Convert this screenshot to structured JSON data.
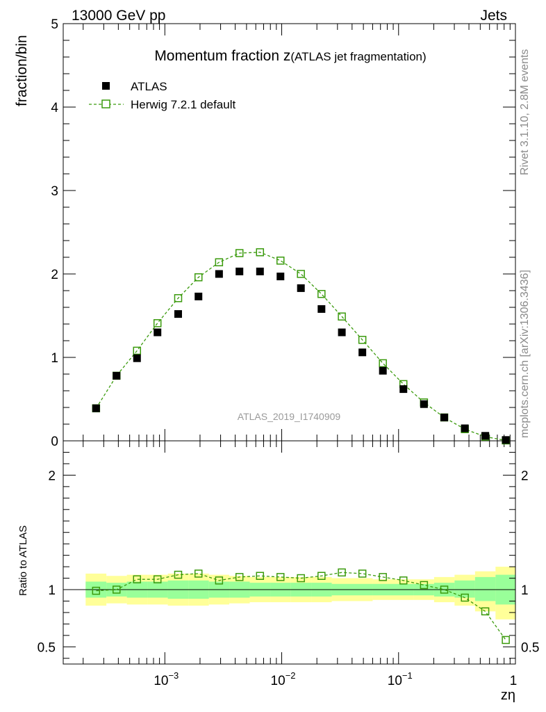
{
  "header": {
    "left": "13000 GeV pp",
    "right": "Jets"
  },
  "side_text": {
    "rivet": "Rivet 3.1.10,  2.8M events",
    "mcplots": "mcplots.cern.ch [arXiv:1306.3436]"
  },
  "chart_data": {
    "type": "scatter",
    "title_main": "Momentum fraction ",
    "title_var": "z",
    "title_sub": "(ATLAS jet fragmentation)",
    "ylabel": "fraction/bin",
    "ratio_ylabel": "Ratio to ATLAS",
    "xlabel": "zη",
    "analysis_id": "ATLAS_2019_I1740909",
    "xscale": "log",
    "xlim": [
      0.000135,
      1.0
    ],
    "ylim": [
      0,
      5
    ],
    "ratio_ylim": [
      0.35,
      2.3
    ],
    "yticks": [
      "0",
      "1",
      "2",
      "3",
      "4",
      "5"
    ],
    "ratio_yticks": [
      "0.5",
      "1",
      "2"
    ],
    "xtick_base": "10",
    "xtick_exps": [
      "−3",
      "−2",
      "−1"
    ],
    "xtick_one": "1",
    "legend": {
      "data": "ATLAS",
      "mc": "Herwig 7.2.1 default"
    },
    "colors": {
      "data": "#000000",
      "mc": "#3a9a0c",
      "band_inner": "#99ff99",
      "band_outer": "#ffff99"
    },
    "bin_edges": [
      0.00021,
      0.000316,
      0.000473,
      0.000708,
      0.00106,
      0.00159,
      0.00238,
      0.00356,
      0.00533,
      0.00798,
      0.0119,
      0.0179,
      0.0268,
      0.0401,
      0.06,
      0.0899,
      0.1345,
      0.2013,
      0.3014,
      0.4512,
      0.6755,
      1.0
    ],
    "x": [
      0.000258,
      0.000386,
      0.000578,
      0.000865,
      0.0013,
      0.00194,
      0.00291,
      0.00435,
      0.00652,
      0.00976,
      0.0146,
      0.0219,
      0.0327,
      0.049,
      0.0734,
      0.11,
      0.165,
      0.246,
      0.369,
      0.552,
      0.827
    ],
    "series": [
      {
        "name": "ATLAS",
        "values": [
          0.39,
          0.78,
          0.99,
          1.3,
          1.52,
          1.73,
          2.0,
          2.03,
          2.03,
          1.97,
          1.83,
          1.58,
          1.3,
          1.06,
          0.84,
          0.62,
          0.44,
          0.28,
          0.15,
          0.06,
          0.01
        ]
      },
      {
        "name": "Herwig 7.2.1 default",
        "values": [
          0.39,
          0.78,
          1.08,
          1.41,
          1.71,
          1.96,
          2.14,
          2.25,
          2.26,
          2.16,
          2.0,
          1.76,
          1.49,
          1.21,
          0.93,
          0.68,
          0.46,
          0.28,
          0.14,
          0.05,
          0.005
        ]
      }
    ],
    "ratio": [
      0.99,
      1.0,
      1.09,
      1.09,
      1.13,
      1.14,
      1.08,
      1.11,
      1.12,
      1.11,
      1.1,
      1.12,
      1.15,
      1.14,
      1.11,
      1.08,
      1.04,
      1.0,
      0.93,
      0.81,
      0.56
    ],
    "band_inner": [
      [
        0.93,
        1.07
      ],
      [
        0.94,
        1.06
      ],
      [
        0.93,
        1.07
      ],
      [
        0.93,
        1.07
      ],
      [
        0.92,
        1.08
      ],
      [
        0.92,
        1.08
      ],
      [
        0.93,
        1.07
      ],
      [
        0.93,
        1.07
      ],
      [
        0.94,
        1.06
      ],
      [
        0.94,
        1.06
      ],
      [
        0.94,
        1.06
      ],
      [
        0.94,
        1.06
      ],
      [
        0.95,
        1.05
      ],
      [
        0.95,
        1.05
      ],
      [
        0.95,
        1.05
      ],
      [
        0.95,
        1.05
      ],
      [
        0.95,
        1.05
      ],
      [
        0.94,
        1.06
      ],
      [
        0.93,
        1.08
      ],
      [
        0.9,
        1.11
      ],
      [
        0.87,
        1.13
      ]
    ],
    "band_outer": [
      [
        0.86,
        1.14
      ],
      [
        0.88,
        1.12
      ],
      [
        0.87,
        1.13
      ],
      [
        0.87,
        1.13
      ],
      [
        0.86,
        1.14
      ],
      [
        0.86,
        1.14
      ],
      [
        0.87,
        1.13
      ],
      [
        0.88,
        1.12
      ],
      [
        0.89,
        1.11
      ],
      [
        0.89,
        1.11
      ],
      [
        0.89,
        1.11
      ],
      [
        0.89,
        1.11
      ],
      [
        0.9,
        1.1
      ],
      [
        0.9,
        1.1
      ],
      [
        0.91,
        1.09
      ],
      [
        0.91,
        1.09
      ],
      [
        0.91,
        1.09
      ],
      [
        0.89,
        1.11
      ],
      [
        0.86,
        1.13
      ],
      [
        0.81,
        1.16
      ],
      [
        0.74,
        1.2
      ]
    ]
  }
}
